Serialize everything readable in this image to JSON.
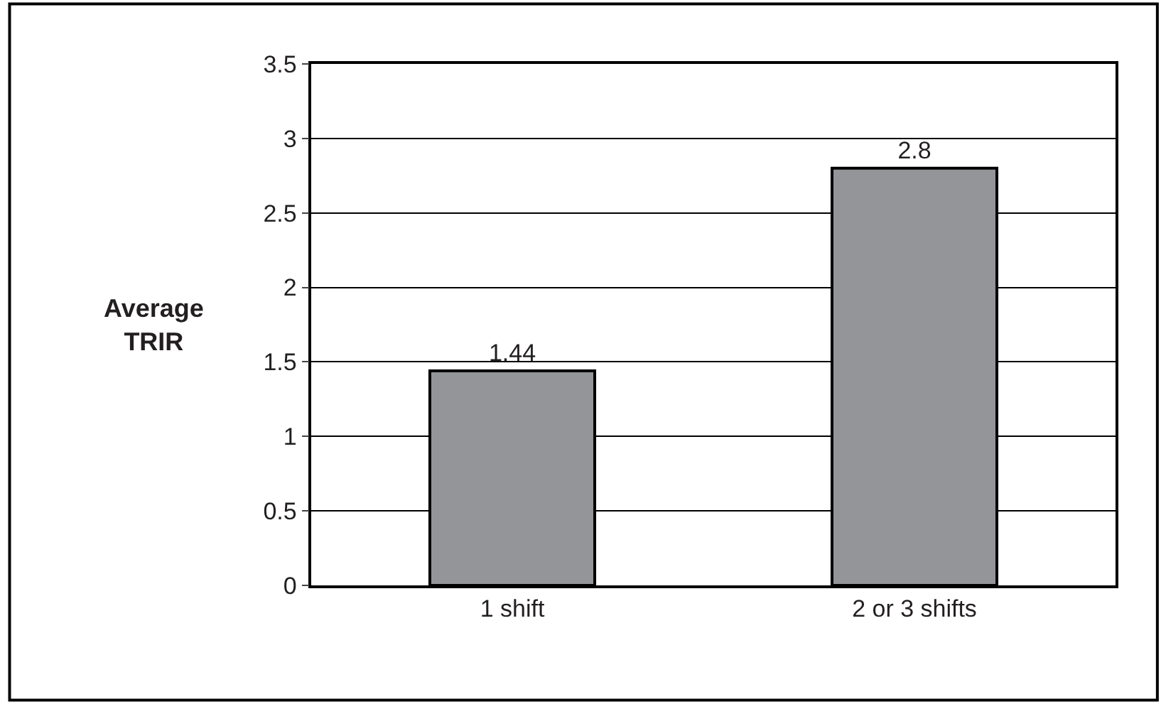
{
  "chart_data": {
    "type": "bar",
    "ylabel": "Average\nTRIR",
    "categories": [
      "1 shift",
      "2 or 3 shifts"
    ],
    "values": [
      1.44,
      2.8
    ],
    "color": "#939598",
    "ylim": [
      0,
      3.5
    ],
    "yticks": [
      0,
      0.5,
      1,
      1.5,
      2,
      2.5,
      3,
      3.5
    ],
    "grid": "y",
    "data_labels": true
  }
}
